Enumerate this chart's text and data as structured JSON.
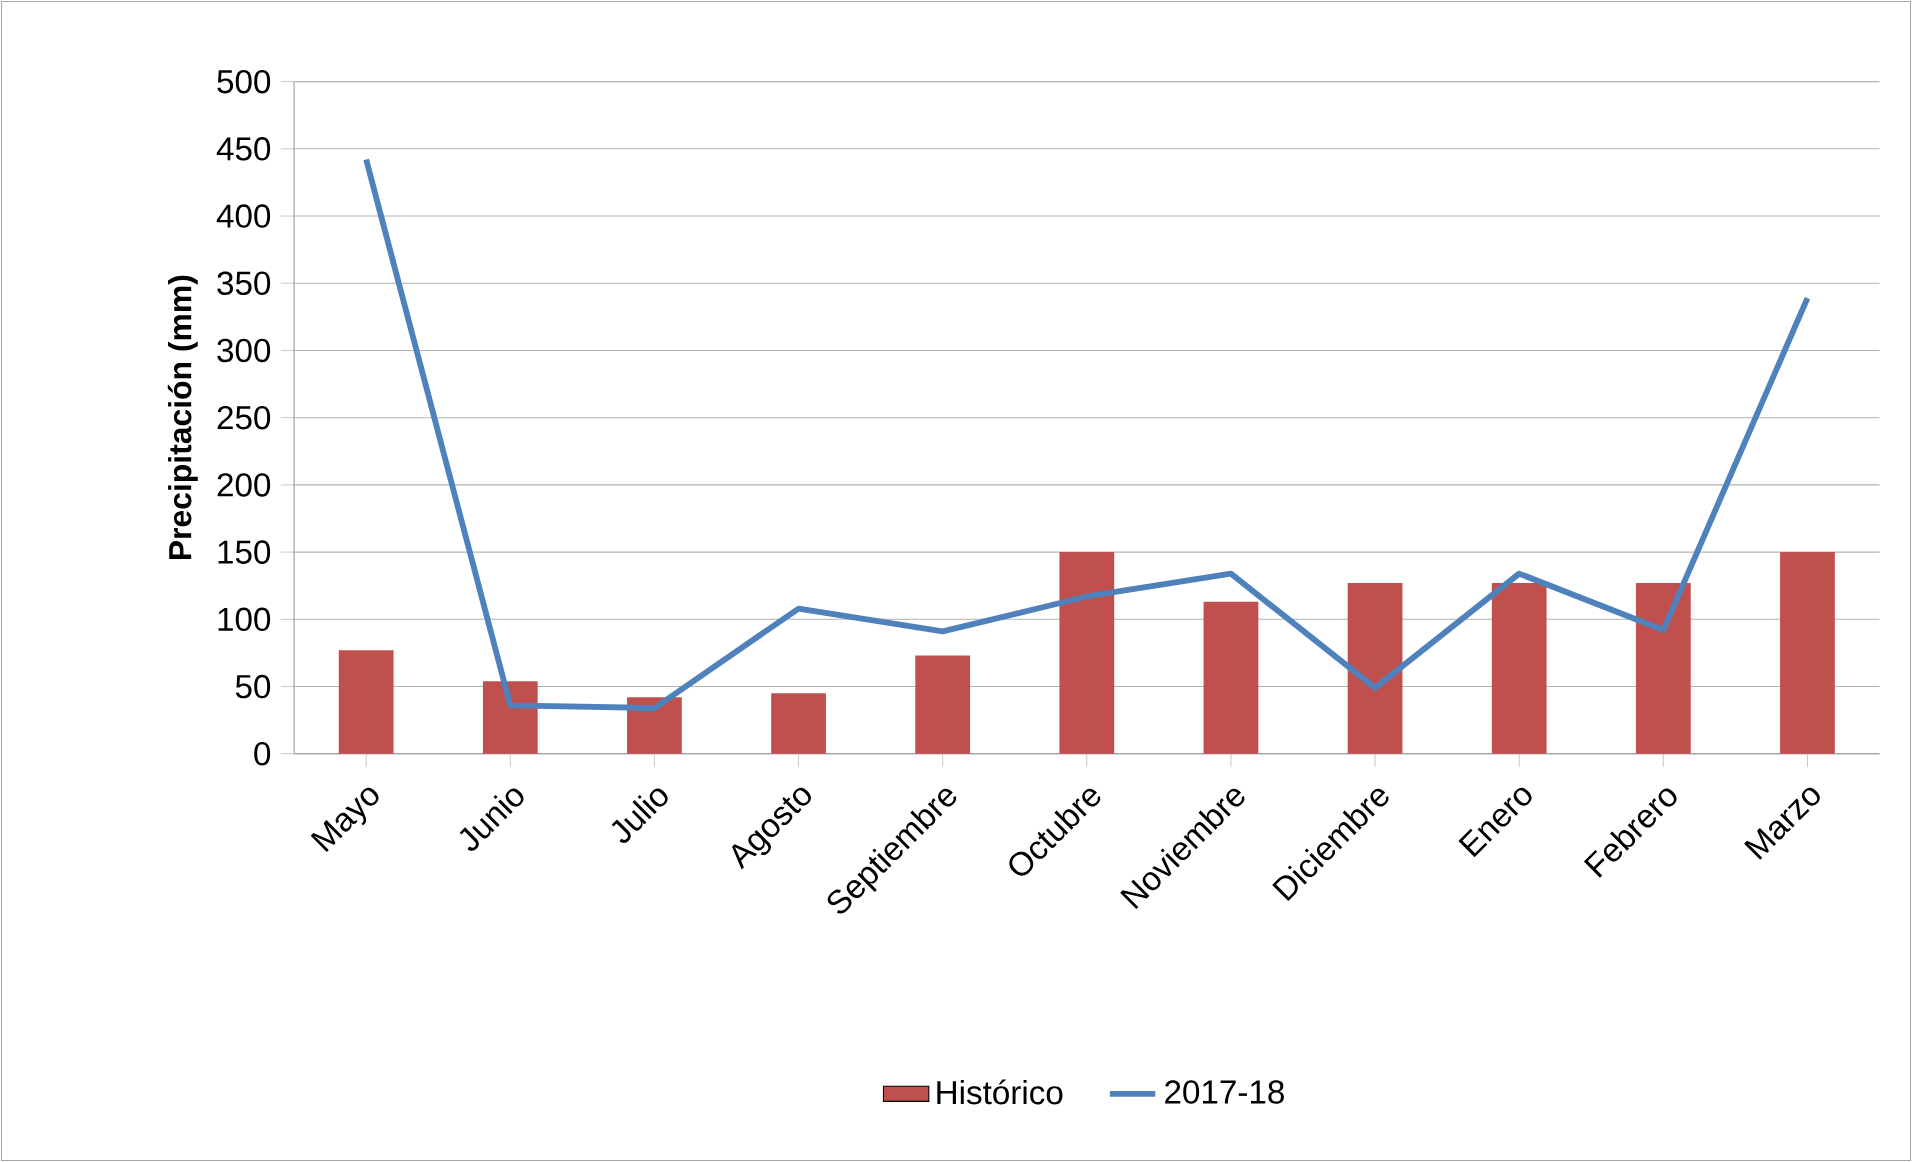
{
  "chart_data": {
    "type": "bar",
    "ylabel": "Precipitación (mm)",
    "categories": [
      "Mayo",
      "Junio",
      "Julio",
      "Agosto",
      "Septiembre",
      "Octubre",
      "Noviembre",
      "Diciembre",
      "Enero",
      "Febrero",
      "Marzo"
    ],
    "series": [
      {
        "name": "Histórico",
        "color": "#c0504d",
        "values": [
          77,
          54,
          42,
          45,
          73,
          150,
          113,
          127,
          127,
          127,
          150
        ]
      },
      {
        "name": "2017-18",
        "type": "line",
        "color": "#4f81bd",
        "values": [
          442,
          36,
          34,
          108,
          91,
          117,
          134,
          49,
          134,
          92,
          339
        ]
      }
    ],
    "ylim": [
      0,
      500
    ],
    "yticks": [
      0,
      50,
      100,
      150,
      200,
      250,
      300,
      350,
      400,
      450,
      500
    ],
    "grid": "y",
    "legend": "bottom"
  }
}
